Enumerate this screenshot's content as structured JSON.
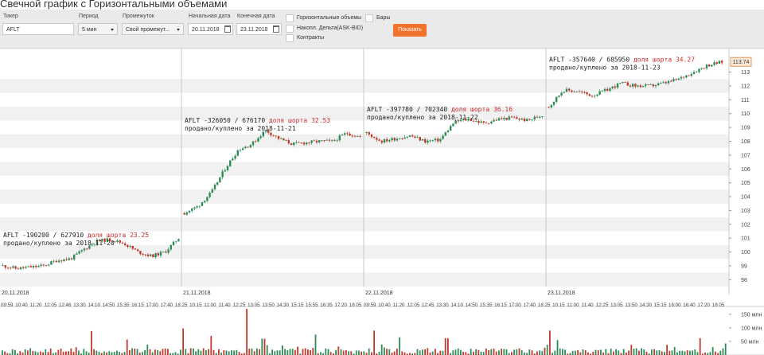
{
  "title": "Свечной график с Горизонтальными объемами",
  "form": {
    "ticker_label": "Тикер",
    "ticker_value": "AFLT",
    "period_label": "Период",
    "period_value": "5 мин",
    "range_label": "Промежуток",
    "range_value": "Свой промежут...",
    "start_label": "Начальная дата",
    "start_value": "20.11.2018",
    "end_label": "Конечная дата",
    "end_value": "23.11.2018",
    "options": [
      {
        "label": "Горизонтальные объемы",
        "checked": false
      },
      {
        "label": "Накопл. Дельта(ASK-BID)",
        "checked": false
      },
      {
        "label": "Контракты",
        "checked": false
      },
      {
        "label": "Бары",
        "checked": false
      }
    ],
    "show_button": "Показать"
  },
  "chart_data": {
    "type": "candlestick",
    "ylim": [
      97.5,
      114.3
    ],
    "y_ticks": [
      "98",
      "99",
      "100",
      "101",
      "102",
      "103",
      "104",
      "105",
      "106",
      "107",
      "108",
      "109",
      "110",
      "111",
      "112",
      "113"
    ],
    "last_price": "113.74",
    "up_color": "#2e8b57",
    "down_color": "#c0392b",
    "day_labels": [
      "20.11.2018",
      "21.11.2018",
      "22.11.2018",
      "23.11.2018"
    ],
    "time_labels": [
      "09:59",
      "10:40",
      "11:20",
      "12:05",
      "12:46",
      "13:30",
      "14:10",
      "14:50",
      "15:35",
      "16:15",
      "17:00",
      "17:40",
      "18:25",
      "10:15",
      "11:00",
      "11:40",
      "12:25",
      "13:05",
      "13:50",
      "14:30",
      "15:15",
      "15:55",
      "16:35",
      "17:20",
      "18:05",
      "09:59",
      "10:40",
      "11:20",
      "12:05",
      "12:45",
      "13:30",
      "14:10",
      "14:50",
      "15:35",
      "16:15",
      "17:00",
      "17:40",
      "18:25",
      "10:15",
      "11:00",
      "11:40",
      "12:25",
      "13:05",
      "13:50",
      "14:30",
      "15:15",
      "16:00",
      "16:40",
      "17:20",
      "18:05"
    ],
    "days": [
      {
        "date": "20.11.2018",
        "open": 99.0,
        "close": 101.0,
        "low": 98.3,
        "high": 101.2,
        "waypoints": [
          99.0,
          98.8,
          98.9,
          99.0,
          99.4,
          99.5,
          100.2,
          100.8,
          100.9,
          100.6,
          100.0,
          99.7,
          100.0,
          101.0
        ],
        "annotation": {
          "text": "AFLT -190200 / 627910",
          "short_label": "доля шорта 23.25",
          "note": "продано/куплено за 2018-11-20"
        }
      },
      {
        "date": "21.11.2018",
        "open": 102.8,
        "close": 108.3,
        "low": 102.5,
        "high": 109.3,
        "waypoints": [
          102.8,
          103.3,
          104.3,
          106.0,
          107.4,
          107.8,
          108.8,
          108.2,
          107.8,
          107.9,
          108.0,
          108.0,
          108.6,
          108.3
        ],
        "annotation": {
          "text": "AFLT -326050 / 676170",
          "short_label": "доля шорта 32.53",
          "note": "продано/куплено за 2018-11-21"
        }
      },
      {
        "date": "22.11.2018",
        "open": 108.6,
        "close": 109.9,
        "low": 106.7,
        "high": 110.5,
        "waypoints": [
          108.6,
          108.0,
          108.2,
          108.4,
          108.0,
          108.1,
          109.4,
          109.6,
          109.3,
          109.6,
          109.7,
          109.5,
          109.9
        ],
        "annotation": {
          "text": "AFLT -397780 / 702340",
          "short_label": "доля шорта 36.16",
          "note": "продано/куплено за 2018-11-22"
        }
      },
      {
        "date": "23.11.2018",
        "open": 110.5,
        "close": 113.74,
        "low": 110.0,
        "high": 113.9,
        "waypoints": [
          110.5,
          111.7,
          111.6,
          111.3,
          111.7,
          112.2,
          112.0,
          112.0,
          112.2,
          112.5,
          113.0,
          113.5,
          113.74
        ],
        "annotation": {
          "text": "AFLT -357640 / 685950",
          "short_label": "доля шорта 34.27",
          "note": "продано/куплено за 2018-11-23"
        }
      }
    ],
    "volume_ticks": [
      "150 млн",
      "100 млн",
      "50 млн"
    ],
    "volume_ylim": [
      0,
      170
    ],
    "volume_spikes_mln": {
      "113": 88,
      "158": 57,
      "228": 98,
      "264": 70,
      "310": 210,
      "330": 60,
      "395": 75,
      "470": 90,
      "500": 65,
      "560": 62,
      "690": 90,
      "700": 55,
      "880": 62
    }
  }
}
